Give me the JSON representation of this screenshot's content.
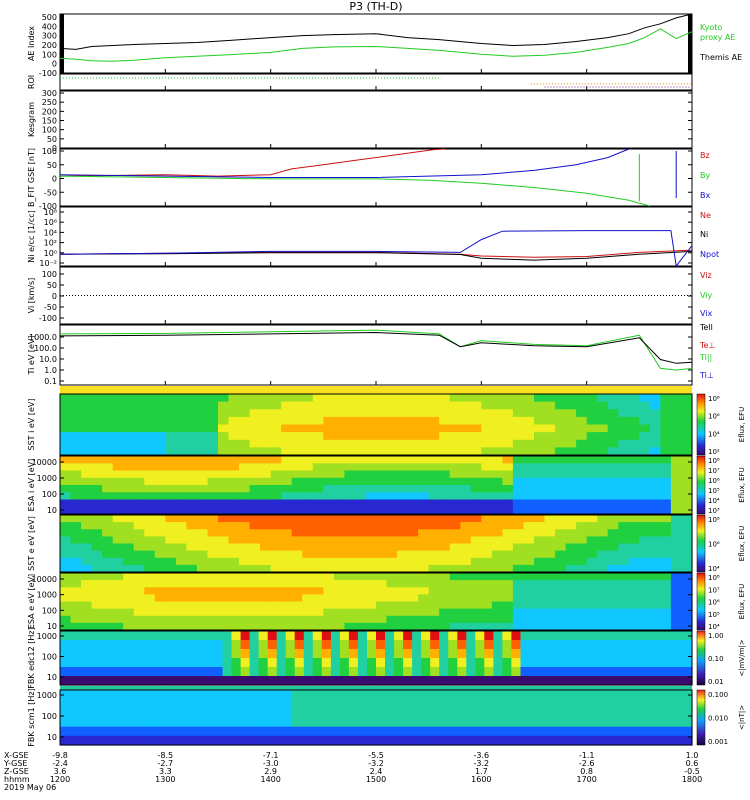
{
  "title": "P3 (TH-D)",
  "date_label": "2019 May 06",
  "colors": {
    "black": "#000000",
    "green": "#22cc22",
    "red": "#cc1111",
    "blue": "#1111cc",
    "orange": "#e08a00",
    "purple": "#7a1f8a"
  },
  "chart_data": [
    {
      "type": "line",
      "panel": "ae",
      "ylabel": "AE Index",
      "ylim": [
        -100,
        500
      ],
      "yticks": [
        "500",
        "400",
        "300",
        "200",
        "100",
        "0",
        "-100"
      ],
      "series": [
        {
          "name": "Kyoto proxy AE",
          "color": "green",
          "x": [
            1200,
            1215,
            1230,
            1250,
            1270,
            1300,
            1330,
            1360,
            1400,
            1430,
            1460,
            1500,
            1530,
            1560,
            1600,
            1630,
            1660,
            1690,
            1720,
            1740,
            1755,
            1770,
            1785,
            1800
          ],
          "values": [
            50,
            40,
            25,
            20,
            30,
            55,
            70,
            85,
            110,
            150,
            165,
            170,
            150,
            130,
            90,
            70,
            80,
            110,
            160,
            200,
            260,
            350,
            250,
            320
          ]
        },
        {
          "name": "Themis AE",
          "color": "black",
          "x": [
            1200,
            1215,
            1230,
            1250,
            1270,
            1300,
            1330,
            1360,
            1400,
            1430,
            1460,
            1500,
            1530,
            1560,
            1600,
            1630,
            1660,
            1690,
            1720,
            1740,
            1755,
            1770,
            1785,
            1800
          ],
          "values": [
            150,
            140,
            170,
            180,
            190,
            200,
            210,
            230,
            260,
            280,
            290,
            300,
            260,
            240,
            200,
            180,
            190,
            220,
            260,
            300,
            360,
            400,
            460,
            500
          ]
        }
      ]
    },
    {
      "type": "line",
      "panel": "roi",
      "ylabel": "ROI",
      "series": [
        {
          "color": "green",
          "x": [
            1200,
            1562
          ],
          "values": [
            1,
            1
          ]
        },
        {
          "color": "orange",
          "x": [
            1647,
            1800
          ],
          "values": [
            0,
            0
          ]
        },
        {
          "color": "purple",
          "x": [
            1660,
            1800
          ],
          "values": [
            -1,
            -1
          ]
        }
      ]
    },
    {
      "type": "line",
      "panel": "kp",
      "ylabel": "Kesgram",
      "ylim": [
        0,
        300
      ],
      "yticks": [
        "300",
        "250",
        "200",
        "150",
        "100",
        "50",
        "0"
      ],
      "series": []
    },
    {
      "type": "line",
      "panel": "bfield",
      "ylabel": "B_FIT GSE [nT]",
      "ylim": [
        -100,
        100
      ],
      "yticks": [
        "100",
        "50",
        "0",
        "-50",
        "-100"
      ],
      "series": [
        {
          "name": "Bz",
          "color": "red",
          "x": [
            1200,
            1300,
            1350,
            1400,
            1420,
            1450,
            1480,
            1510,
            1540,
            1555,
            1565
          ],
          "values": [
            5,
            10,
            5,
            10,
            30,
            45,
            60,
            75,
            90,
            98,
            100
          ]
        },
        {
          "name": "By",
          "color": "green",
          "x": [
            1200,
            1300,
            1400,
            1500,
            1550,
            1600,
            1650,
            1700,
            1740,
            1760
          ],
          "values": [
            5,
            0,
            -5,
            -5,
            -10,
            -20,
            -35,
            -55,
            -80,
            -100
          ]
        },
        {
          "name": "Bx",
          "color": "blue",
          "x": [
            1200,
            1300,
            1400,
            1500,
            1550,
            1600,
            1650,
            1690,
            1720,
            1740
          ],
          "values": [
            10,
            5,
            0,
            0,
            5,
            10,
            25,
            45,
            70,
            100
          ]
        }
      ]
    },
    {
      "type": "line",
      "panel": "density",
      "ylabel": "Ni e/cc [1/cc]",
      "yscale": "log",
      "ylim": [
        0.01,
        100000000
      ],
      "yticks": [
        "10⁸",
        "10⁶",
        "10⁴",
        "10²",
        "10⁰",
        "10⁻²"
      ],
      "series": [
        {
          "name": "Ne",
          "color": "red",
          "x": [
            1200,
            1300,
            1400,
            1500,
            1580,
            1600,
            1650,
            1700,
            1750,
            1800
          ],
          "values": [
            1,
            1.5,
            2,
            2,
            1,
            0.5,
            0.3,
            0.4,
            2,
            5
          ]
        },
        {
          "name": "Ni",
          "color": "black",
          "x": [
            1200,
            1300,
            1400,
            1500,
            1580,
            1600,
            1650,
            1700,
            1750,
            1800
          ],
          "values": [
            1,
            1.2,
            1.8,
            1.8,
            0.9,
            0.2,
            0.1,
            0.2,
            1,
            3
          ]
        },
        {
          "name": "Npot",
          "color": "blue",
          "x": [
            1200,
            1300,
            1400,
            1500,
            1580,
            1600,
            1620,
            1700,
            1780,
            1785,
            1800
          ],
          "values": [
            1,
            1.5,
            3,
            3,
            2,
            300,
            8000,
            10000,
            10000,
            0.01,
            30
          ]
        }
      ]
    },
    {
      "type": "line",
      "panel": "velocity",
      "ylabel": "Vi [km/s]",
      "ylim": [
        -150,
        150
      ],
      "yticks": [
        "100",
        "50",
        "0",
        "-50",
        "-100"
      ],
      "series": [
        {
          "name": "Vix",
          "color": "blue",
          "x": [
            1200,
            1800
          ],
          "values": [
            0,
            0
          ]
        }
      ]
    },
    {
      "type": "line",
      "panel": "temperature",
      "ylabel": "Ti eV [eV]",
      "yscale": "log",
      "ylim": [
        0.1,
        5000
      ],
      "yticks": [
        "1000.0",
        "100.0",
        "10.0",
        "1.0",
        "0.1"
      ],
      "series": [
        {
          "name": "Te⊥",
          "color": "green",
          "x": [
            1200,
            1300,
            1400,
            1500,
            1560,
            1580,
            1600,
            1650,
            1700,
            1750,
            1770,
            1785,
            1800
          ],
          "values": [
            1000,
            1100,
            1500,
            2000,
            1000,
            100,
            300,
            150,
            120,
            800,
            2,
            1.5,
            2
          ]
        },
        {
          "name": "Tell",
          "color": "black",
          "x": [
            1200,
            1300,
            1400,
            1500,
            1560,
            1580,
            1600,
            1650,
            1700,
            1750,
            1770,
            1785,
            1800
          ],
          "values": [
            700,
            800,
            1000,
            1300,
            800,
            100,
            200,
            120,
            100,
            500,
            10,
            5,
            6
          ]
        }
      ]
    },
    {
      "type": "heatmap",
      "panel": "sst_ion",
      "ylabel": "SST i eV [eV]",
      "colorbar": "Eflux, EFU",
      "cticks": [
        "10⁸",
        "10⁶",
        "10⁴",
        "10²"
      ]
    },
    {
      "type": "heatmap",
      "panel": "esa_ion",
      "ylabel": "ESA i eV [eV]",
      "colorbar": "Eflux, EFU",
      "yticks": [
        "10000",
        "1000",
        "100",
        "10"
      ],
      "cticks": [
        "10⁸",
        "10⁷",
        "10⁶",
        "10⁵",
        "10⁴",
        "10³"
      ]
    },
    {
      "type": "heatmap",
      "panel": "sst_elec",
      "ylabel": "SST e eV [eV]",
      "colorbar": "Eflux, EFU",
      "cticks": [
        "10⁸",
        "10⁶",
        "10⁴"
      ]
    },
    {
      "type": "heatmap",
      "panel": "esa_elec",
      "ylabel": "ESA e eV [eV]",
      "colorbar": "Eflux, EFU",
      "yticks": [
        "10000",
        "1000",
        "100",
        "10"
      ],
      "cticks": [
        "10⁸",
        "10⁷",
        "10⁶",
        "10⁵",
        "10⁴"
      ]
    },
    {
      "type": "heatmap",
      "panel": "fbk_e",
      "ylabel": "FBK edc12 [Hz]",
      "colorbar": "<|mV/m|>",
      "yticks": [
        "1000",
        "100",
        "10"
      ],
      "cticks": [
        "1.00",
        "0.10",
        "0.01"
      ]
    },
    {
      "type": "heatmap",
      "panel": "fbk_b",
      "ylabel": "FBK scm1 [Hz]",
      "colorbar": "<|nT|>",
      "yticks": [
        "1000",
        "100",
        "10"
      ],
      "cticks": [
        "0.100",
        "0.010",
        "0.001"
      ]
    },
    {
      "type": "table",
      "panel": "orbit_axis",
      "row_labels": [
        "X-GSE",
        "Y-GSE",
        "Z-GSE",
        "hhmm"
      ],
      "columns": [
        {
          "x": "-9.8",
          "y": "-2.4",
          "z": "3.6",
          "t": "1200"
        },
        {
          "x": "-8.5",
          "y": "-2.7",
          "z": "3.3",
          "t": "1300"
        },
        {
          "x": "-7.1",
          "y": "-3.0",
          "z": "2.9",
          "t": "1400"
        },
        {
          "x": "-5.5",
          "y": "-3.2",
          "z": "2.4",
          "t": "1500"
        },
        {
          "x": "-3.6",
          "y": "-3.2",
          "z": "1.7",
          "t": "1600"
        },
        {
          "x": "-1.1",
          "y": "-2.6",
          "z": "0.8",
          "t": "1700"
        },
        {
          "x": "1.0",
          "y": "0.6",
          "z": "-0.5",
          "t": "1800"
        }
      ]
    }
  ]
}
